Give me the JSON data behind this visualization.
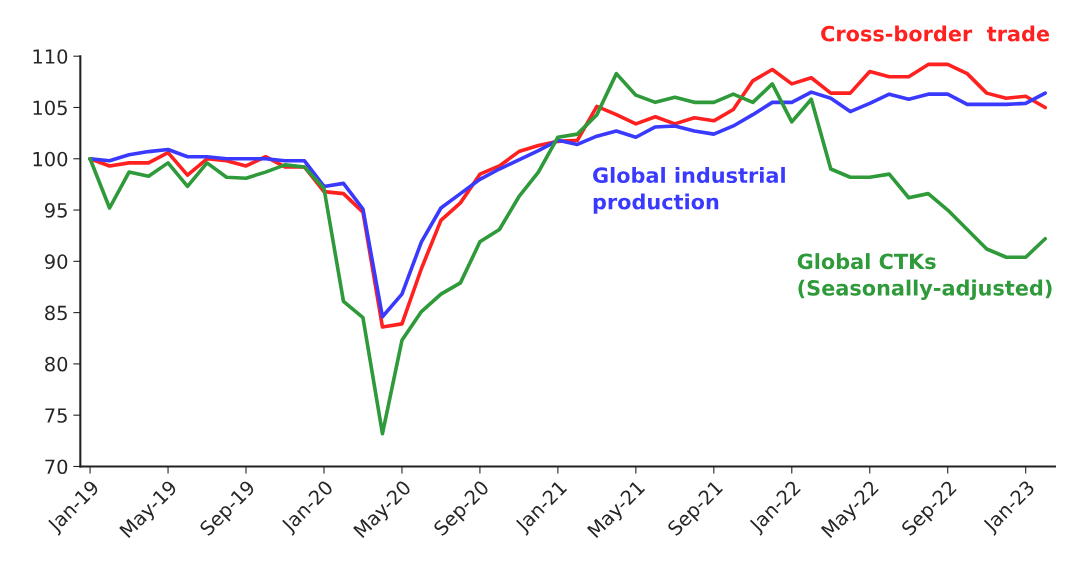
{
  "chart_data": {
    "type": "line",
    "categories": [
      "Jan-19",
      null,
      null,
      null,
      "May-19",
      null,
      null,
      null,
      "Sep-19",
      null,
      null,
      null,
      "Jan-20",
      null,
      null,
      null,
      "May-20",
      null,
      null,
      null,
      "Sep-20",
      null,
      null,
      null,
      "Jan-21",
      null,
      null,
      null,
      "May-21",
      null,
      null,
      null,
      "Sep-21",
      null,
      null,
      null,
      "Jan-22",
      null,
      null,
      null,
      "May-22",
      null,
      null,
      null,
      "Sep-22",
      null,
      null,
      null,
      "Jan-23",
      null
    ],
    "series": [
      {
        "name": "Cross-border  trade",
        "color": "#ff2020",
        "values": [
          100,
          99.3,
          99.6,
          99.6,
          100.6,
          98.4,
          100,
          99.8,
          99.3,
          100.2,
          99.2,
          99.2,
          96.8,
          96.6,
          94.8,
          83.6,
          83.9,
          89.3,
          94.0,
          95.7,
          98.5,
          99.3,
          100.7,
          101.3,
          101.7,
          101.8,
          105.1,
          104.3,
          103.4,
          104.1,
          103.4,
          104.0,
          103.7,
          104.8,
          107.6,
          108.7,
          107.3,
          107.9,
          106.4,
          106.4,
          108.5,
          108.0,
          108.0,
          109.2,
          109.2,
          108.3,
          106.4,
          105.9,
          106.1,
          105.0
        ]
      },
      {
        "name": "Global industrial\nproduction",
        "color": "#3a3aff",
        "values": [
          100,
          99.8,
          100.4,
          100.7,
          100.9,
          100.2,
          100.2,
          100,
          100,
          100,
          99.8,
          99.8,
          97.3,
          97.6,
          95.1,
          84.6,
          86.8,
          91.9,
          95.2,
          96.6,
          98.0,
          99.0,
          99.9,
          100.8,
          101.8,
          101.4,
          102.2,
          102.7,
          102.1,
          103.1,
          103.2,
          102.7,
          102.4,
          103.2,
          104.3,
          105.5,
          105.5,
          106.5,
          105.9,
          104.6,
          105.4,
          106.3,
          105.8,
          106.3,
          106.3,
          105.3,
          105.3,
          105.3,
          105.4,
          106.4
        ]
      },
      {
        "name": "Global CTKs\n(Seasonally-adjusted)",
        "color": "#2e9a3a",
        "values": [
          100,
          95.2,
          98.7,
          98.3,
          99.6,
          97.3,
          99.6,
          98.2,
          98.1,
          98.7,
          99.4,
          99.2,
          97.1,
          86.1,
          84.5,
          73.2,
          82.3,
          85.1,
          86.8,
          87.9,
          91.9,
          93.1,
          96.3,
          98.7,
          102.1,
          102.4,
          104.3,
          108.3,
          106.2,
          105.5,
          106.0,
          105.5,
          105.5,
          106.3,
          105.5,
          107.3,
          103.6,
          105.8,
          99.0,
          98.2,
          98.2,
          98.5,
          96.2,
          96.6,
          95.0,
          93.1,
          91.2,
          90.4,
          90.4,
          92.2
        ]
      }
    ],
    "ylim": [
      70,
      110
    ],
    "yticks": [
      70,
      75,
      80,
      85,
      90,
      95,
      100,
      105,
      110
    ],
    "grid": false,
    "legend": false,
    "marker": "none",
    "line_style": "solid"
  }
}
